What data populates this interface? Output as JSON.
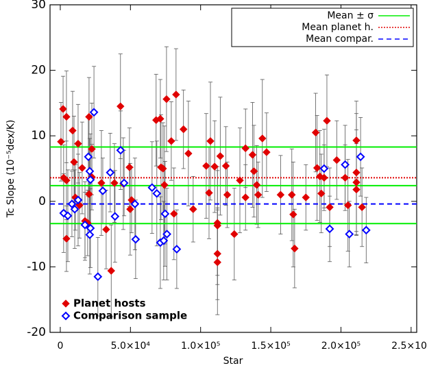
{
  "chart_data": {
    "type": "scatter",
    "xlabel": "Star",
    "ylabel": "Tc Slope (10⁻⁵dex/K)",
    "xlim": [
      -7300,
      254000
    ],
    "ylim": [
      -20,
      30
    ],
    "xticks": [
      0,
      {
        "value": 50000,
        "label": "5.0×10⁴"
      },
      {
        "value": 100000,
        "label": "1.0×10⁵"
      },
      {
        "value": 150000,
        "label": "1.5×10⁵"
      },
      {
        "value": 200000,
        "label": "2.0×10⁵"
      },
      {
        "value": 250000,
        "label": "2.5×10⁵"
      }
    ],
    "yticks": [
      -20,
      -10,
      0,
      10,
      20,
      30
    ],
    "legend": "lower left",
    "series": [
      {
        "name": "Planet hosts",
        "color": "#e00000",
        "marker": "filled",
        "x": [
          500,
          2000,
          4400,
          2400,
          4400,
          4400,
          8800,
          9800,
          10700,
          12700,
          13700,
          15600,
          17600,
          20500,
          22500,
          22500,
          20500,
          19500,
          29300,
          32700,
          36300,
          38600,
          42900,
          44900,
          49300,
          50800,
          49800,
          68300,
          71300,
          71800,
          73200,
          74200,
          75700,
          79100,
          81000,
          82500,
          87800,
          91300,
          94700,
          104000,
          107000,
          110000,
          112000,
          112000,
          112000,
          112000,
          114000,
          118000,
          106000,
          119000,
          124000,
          128000,
          132000,
          132000,
          137000,
          138000,
          140000,
          144000,
          147000,
          141000,
          157000,
          165000,
          166000,
          167000,
          175000,
          182000,
          183000,
          185000,
          186000,
          188000,
          190000,
          192000,
          197000,
          203000,
          205000,
          211000,
          211000,
          211000,
          211000,
          215000
        ],
        "values": [
          9.1,
          14.1,
          12.9,
          3.6,
          3.2,
          -5.7,
          10.8,
          6.0,
          0.6,
          8.8,
          -0.6,
          5.1,
          -3.0,
          12.9,
          8.0,
          3.7,
          1.1,
          -3.3,
          2.8,
          -4.3,
          -10.6,
          2.8,
          14.5,
          2.7,
          5.2,
          0.2,
          -1.2,
          12.4,
          12.6,
          5.2,
          5.0,
          2.5,
          15.6,
          9.2,
          -1.9,
          16.3,
          11.0,
          7.3,
          -1.2,
          5.4,
          9.2,
          5.3,
          -3.3,
          -3.7,
          -8.0,
          -9.3,
          6.9,
          5.4,
          1.3,
          1.0,
          -5.0,
          3.2,
          8.1,
          0.6,
          7.1,
          4.6,
          2.5,
          9.6,
          7.5,
          1.0,
          1.0,
          1.0,
          -2.0,
          -7.2,
          0.6,
          10.5,
          5.1,
          3.8,
          1.2,
          3.6,
          12.3,
          -0.9,
          6.3,
          3.6,
          -0.6,
          9.3,
          4.4,
          2.9,
          1.8,
          -0.9
        ],
        "errors": [
          6,
          5,
          7,
          5,
          6,
          5,
          6,
          7,
          5,
          6,
          5,
          7,
          6,
          6,
          7,
          5,
          6,
          5,
          8,
          6,
          7,
          6,
          8,
          7,
          6,
          5,
          7,
          7,
          6,
          8,
          7,
          9,
          8,
          6,
          7,
          7,
          6,
          8,
          5,
          8,
          9,
          7,
          8,
          9,
          7,
          8,
          9,
          6,
          7,
          5,
          7,
          8,
          6,
          5,
          8,
          7,
          6,
          9,
          6,
          5,
          6,
          7,
          8,
          6,
          5,
          6,
          8,
          7,
          6,
          5,
          7,
          6,
          6,
          5,
          7,
          6,
          9,
          8,
          7,
          6
        ]
      },
      {
        "name": "Comparison sample",
        "color": "#0000ff",
        "marker": "open",
        "x": [
          2400,
          5400,
          8300,
          10300,
          12700,
          17600,
          20000,
          21000,
          21500,
          21500,
          21000,
          24000,
          26800,
          30300,
          35600,
          39000,
          43000,
          45500,
          53200,
          53700,
          65400,
          68800,
          71300,
          73700,
          74700,
          76000,
          83000,
          188000,
          192000,
          203000,
          206000,
          214000,
          218000
        ],
        "values": [
          -1.8,
          -2.2,
          -0.4,
          -1.2,
          0.2,
          -3.6,
          6.8,
          4.6,
          3.3,
          -4.1,
          -5.1,
          13.6,
          -11.5,
          1.6,
          4.4,
          -2.3,
          7.8,
          2.8,
          -0.4,
          -5.8,
          2.1,
          1.2,
          -6.3,
          -6.0,
          -1.9,
          -5.0,
          -7.3,
          5.0,
          -4.2,
          5.6,
          -5.0,
          6.8,
          -4.4
        ],
        "errors": [
          6,
          7,
          5,
          6,
          7,
          5,
          6,
          5,
          7,
          6,
          6,
          7,
          6,
          5,
          6,
          7,
          6,
          5,
          7,
          6,
          7,
          8,
          7,
          6,
          8,
          7,
          6,
          6,
          5,
          6,
          5,
          6,
          5
        ]
      }
    ],
    "hlines": [
      {
        "name": "Mean ± σ",
        "color": "#00ee00",
        "style": "solid",
        "values": [
          8.3,
          2.4,
          -3.4
        ]
      },
      {
        "name": "Mean planet h.",
        "color": "#e00000",
        "style": "dotted",
        "values": [
          3.6
        ]
      },
      {
        "name": "Mean compar.",
        "color": "#0000ff",
        "style": "dashed",
        "values": [
          -0.4
        ]
      }
    ]
  }
}
